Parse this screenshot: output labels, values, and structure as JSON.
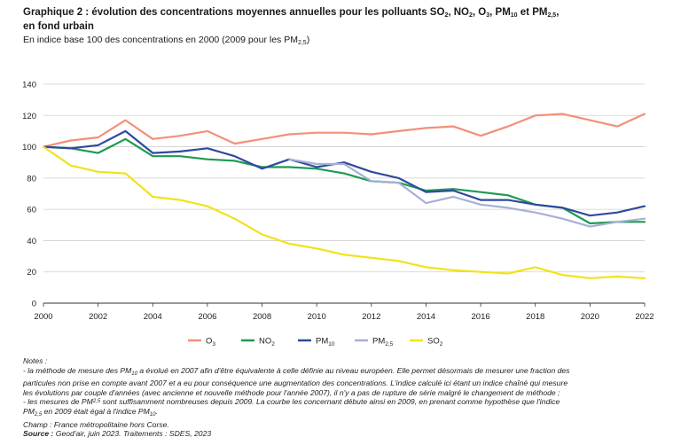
{
  "header": {
    "title_part1": "Graphique 2 : évolution des concentrations moyennes annuelles pour les polluants SO",
    "title_sub1": "2",
    "title_part2": ", NO",
    "title_sub2": "2",
    "title_part3": ", O",
    "title_sub3": "3",
    "title_part4": ", PM",
    "title_sub4": "10",
    "title_part5": " et PM",
    "title_sub5": "2,5",
    "title_part6": ",",
    "title_line2": "en fond urbain",
    "subtitle_part1": "En indice base 100 des concentrations en 2000 (2009 pour les PM",
    "subtitle_sub": "2,5",
    "subtitle_part2": ")"
  },
  "chart_data": {
    "type": "line",
    "x": [
      2000,
      2001,
      2002,
      2003,
      2004,
      2005,
      2006,
      2007,
      2008,
      2009,
      2010,
      2011,
      2012,
      2013,
      2014,
      2015,
      2016,
      2017,
      2018,
      2019,
      2020,
      2021,
      2022
    ],
    "xticks": [
      "2000",
      "2002",
      "2004",
      "2006",
      "2008",
      "2010",
      "2012",
      "2014",
      "2016",
      "2018",
      "2020",
      "2022"
    ],
    "yticks": [
      "0",
      "20",
      "40",
      "60",
      "80",
      "100",
      "120",
      "140"
    ],
    "ylim": [
      0,
      140
    ],
    "xlim": [
      2000,
      2022
    ],
    "grid": "horizontal",
    "legend_position": "bottom",
    "series": [
      {
        "name": "O",
        "name_sub": "3",
        "color": "#F2907A",
        "values": [
          100,
          104,
          106,
          117,
          105,
          107,
          110,
          102,
          105,
          108,
          109,
          109,
          108,
          110,
          112,
          113,
          107,
          113,
          120,
          121,
          117,
          113,
          121
        ]
      },
      {
        "name": "NO",
        "name_sub": "2",
        "color": "#1E9A52",
        "values": [
          100,
          99,
          96,
          105,
          94,
          94,
          92,
          91,
          87,
          87,
          86,
          83,
          78,
          77,
          72,
          73,
          71,
          69,
          63,
          61,
          51,
          52,
          52
        ]
      },
      {
        "name": "PM",
        "name_sub": "10",
        "color": "#2E4A9E",
        "values": [
          100,
          99,
          101,
          110,
          96,
          97,
          99,
          94,
          86,
          92,
          87,
          90,
          84,
          80,
          71,
          72,
          66,
          66,
          63,
          61,
          56,
          58,
          62
        ]
      },
      {
        "name": "PM",
        "name_sub": "2,5",
        "color": "#A6AFD6",
        "values": [
          null,
          null,
          null,
          null,
          null,
          null,
          null,
          null,
          null,
          92,
          89,
          89,
          78,
          77,
          64,
          68,
          63,
          61,
          58,
          54,
          49,
          52,
          54
        ]
      },
      {
        "name": "SO",
        "name_sub": "2",
        "color": "#F2E21A",
        "values": [
          100,
          88,
          84,
          83,
          68,
          66,
          62,
          54,
          44,
          38,
          35,
          31,
          29,
          27,
          23,
          21,
          20,
          19,
          23,
          18,
          16,
          17,
          16
        ]
      }
    ]
  },
  "notes": {
    "heading": "Notes :",
    "line1_a": "- la méthode de mesure des PM",
    "line1_sub": "10",
    "line1_b": " a évolué en 2007 afin d'être équivalente à celle définie au niveau européen. Elle permet désormais de mesurer une fraction des",
    "line2": "particules non prise en compte avant 2007 et a eu pour conséquence une augmentation des concentrations. L'indice calculé ici étant un indice chaîné qui mesure",
    "line3": "les évolutions par couple d'années (avec ancienne et nouvelle méthode pour l'année 2007), il n'y a pas de rupture de série malgré le changement de méthode ;",
    "line4_a": "- les mesures de PM",
    "line4_sub": "2,5",
    "line4_b": " sont suffisamment nombreuses depuis 2009. La courbe les concernant débute ainsi en 2009, en prenant comme hypothèse que l'indice",
    "line5_a": "PM",
    "line5_sub": "2,5",
    "line5_b": " en 2009 était égal à l'indice PM",
    "line5_sub2": "10",
    "line5_c": ".",
    "champ": "Champ : France métropolitaine hors Corse.",
    "source_label": "Source :",
    "source_text": " Geod'air, juin 2023. Traitements : SDES, 2023"
  }
}
